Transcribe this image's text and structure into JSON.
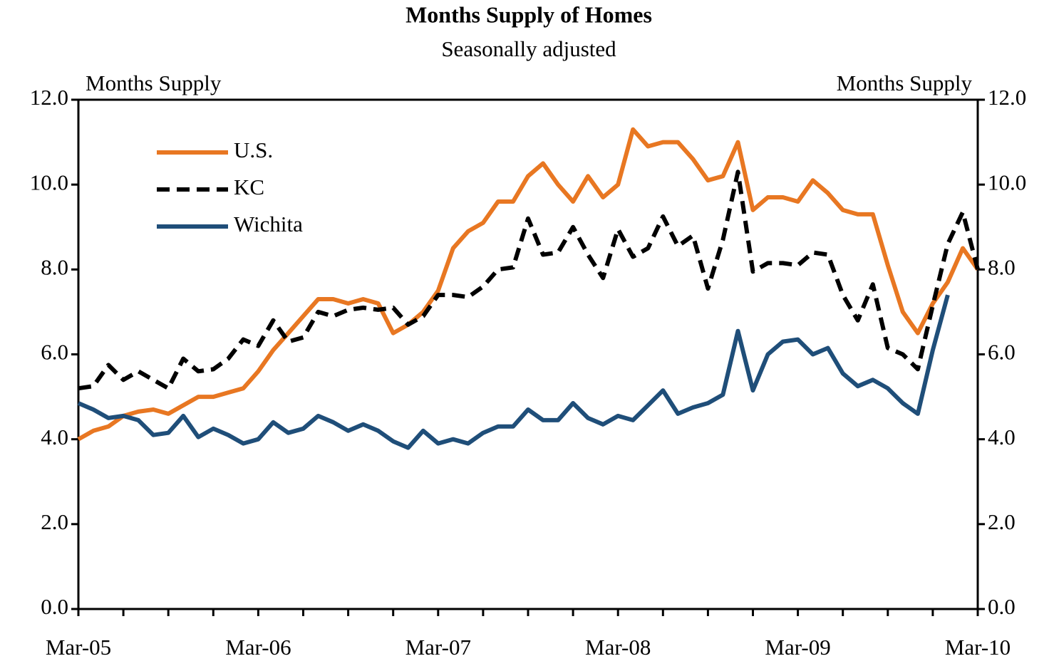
{
  "chart_data": {
    "type": "line",
    "title": "Months Supply of Homes",
    "subtitle": "Seasonally adjusted",
    "ylabel": "Months Supply",
    "y2label": "Months Supply",
    "categories": [
      "Mar-05",
      null,
      null,
      null,
      null,
      null,
      null,
      null,
      null,
      null,
      null,
      null,
      "Mar-06",
      null,
      null,
      null,
      null,
      null,
      null,
      null,
      null,
      null,
      null,
      null,
      "Mar-07",
      null,
      null,
      null,
      null,
      null,
      null,
      null,
      null,
      null,
      null,
      null,
      "Mar-08",
      null,
      null,
      null,
      null,
      null,
      null,
      null,
      null,
      null,
      null,
      null,
      "Mar-09",
      null,
      null,
      null,
      null,
      null,
      null,
      null,
      null,
      null,
      null,
      null,
      "Mar-10"
    ],
    "series": [
      {
        "name": "U.S.",
        "color": "#e87722",
        "style": "solid",
        "values": [
          4.0,
          4.2,
          4.3,
          4.55,
          4.65,
          4.7,
          4.6,
          4.8,
          5.0,
          5.0,
          5.1,
          5.2,
          5.6,
          6.1,
          6.5,
          6.9,
          7.3,
          7.3,
          7.2,
          7.3,
          7.2,
          6.5,
          6.7,
          7.0,
          7.5,
          8.5,
          8.9,
          9.1,
          9.6,
          9.6,
          10.2,
          10.5,
          10.0,
          9.6,
          10.2,
          9.7,
          10.0,
          11.3,
          10.9,
          11.0,
          11.0,
          10.6,
          10.1,
          10.2,
          11.0,
          9.4,
          9.7,
          9.7,
          9.6,
          10.1,
          9.8,
          9.4,
          9.3,
          9.3,
          8.1,
          7.0,
          6.5,
          7.2,
          7.7,
          8.5,
          8.0
        ]
      },
      {
        "name": "KC",
        "color": "#000000",
        "style": "dashed",
        "values": [
          5.2,
          5.25,
          5.75,
          5.4,
          5.6,
          5.4,
          5.2,
          5.9,
          5.6,
          5.65,
          5.9,
          6.35,
          6.2,
          6.8,
          6.3,
          6.4,
          7.0,
          6.9,
          7.05,
          7.1,
          7.05,
          7.1,
          6.7,
          6.9,
          7.4,
          7.4,
          7.35,
          7.6,
          8.0,
          8.05,
          9.2,
          8.35,
          8.4,
          9.0,
          8.35,
          7.8,
          8.95,
          8.3,
          8.5,
          9.25,
          8.55,
          8.8,
          7.55,
          8.7,
          10.3,
          7.95,
          8.15,
          8.15,
          8.1,
          8.4,
          8.35,
          7.4,
          6.8,
          7.65,
          6.15,
          6.0,
          5.65,
          7.15,
          8.6,
          9.35,
          8.0
        ]
      },
      {
        "name": "Wichita",
        "color": "#1f4e79",
        "style": "solid",
        "values": [
          4.85,
          4.7,
          4.5,
          4.55,
          4.45,
          4.1,
          4.15,
          4.55,
          4.05,
          4.25,
          4.1,
          3.9,
          4.0,
          4.4,
          4.15,
          4.25,
          4.55,
          4.4,
          4.2,
          4.35,
          4.2,
          3.95,
          3.8,
          4.2,
          3.9,
          4.0,
          3.9,
          4.15,
          4.3,
          4.3,
          4.7,
          4.45,
          4.45,
          4.85,
          4.5,
          4.35,
          4.55,
          4.45,
          4.8,
          5.15,
          4.6,
          4.75,
          4.85,
          5.05,
          6.55,
          5.15,
          6.0,
          6.3,
          6.35,
          6.0,
          6.15,
          5.55,
          5.25,
          5.4,
          5.2,
          4.85,
          4.6,
          6.1,
          7.4,
          null,
          null
        ]
      }
    ],
    "ylim": [
      0,
      12
    ],
    "yticks": [
      {
        "value": 0,
        "label": "0.0"
      },
      {
        "value": 2,
        "label": "2.0"
      },
      {
        "value": 4,
        "label": "4.0"
      },
      {
        "value": 6,
        "label": "6.0"
      },
      {
        "value": 8,
        "label": "8.0"
      },
      {
        "value": 10,
        "label": "10.0"
      },
      {
        "value": 12,
        "label": "12.0"
      }
    ],
    "y2lim": [
      0,
      12
    ],
    "y2ticks": [
      {
        "value": 0,
        "label": "0.0"
      },
      {
        "value": 2,
        "label": "2.0"
      },
      {
        "value": 4,
        "label": "4.0"
      },
      {
        "value": 6,
        "label": "6.0"
      },
      {
        "value": 8,
        "label": "8.0"
      },
      {
        "value": 10,
        "label": "10.0"
      },
      {
        "value": 12,
        "label": "12.0"
      }
    ],
    "grid": false,
    "legend": "upper-left"
  }
}
